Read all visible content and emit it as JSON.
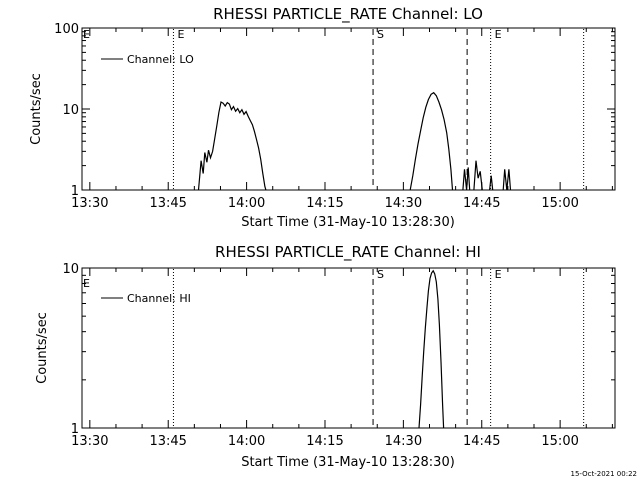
{
  "chart_data": [
    {
      "type": "line",
      "title": "RHESSI PARTICLE_RATE Channel: LO",
      "xlabel": "Start Time (31-May-10 13:28:30)",
      "ylabel": "Counts/sec",
      "x_unit": "minutes after 13:28:30 on 31-May-10",
      "xlim": [
        0,
        102
      ],
      "ylim": [
        1,
        100
      ],
      "y_scale": "log",
      "xticks": [
        {
          "t": 1.5,
          "label": "13:30"
        },
        {
          "t": 16.5,
          "label": "13:45"
        },
        {
          "t": 31.5,
          "label": "14:00"
        },
        {
          "t": 46.5,
          "label": "14:15"
        },
        {
          "t": 61.5,
          "label": "14:30"
        },
        {
          "t": 76.5,
          "label": "14:45"
        },
        {
          "t": 91.5,
          "label": "15:00"
        }
      ],
      "yticks": [
        {
          "v": 1,
          "label": "1"
        },
        {
          "v": 10,
          "label": "10"
        },
        {
          "v": 100,
          "label": "100"
        }
      ],
      "grid": false,
      "legend_position": "top-left",
      "series": [
        {
          "name": "Channel: LO",
          "segments": [
            [
              [
                22.3,
                1
              ],
              [
                22.8,
                2.3
              ],
              [
                23.2,
                1.6
              ],
              [
                23.5,
                2.9
              ],
              [
                23.9,
                2.2
              ],
              [
                24.2,
                3.1
              ],
              [
                24.6,
                2.5
              ],
              [
                25.0,
                3.0
              ],
              [
                25.4,
                4.3
              ],
              [
                25.8,
                6.2
              ],
              [
                26.2,
                9.1
              ],
              [
                26.6,
                12.2
              ],
              [
                27.0,
                11.8
              ],
              [
                27.4,
                10.9
              ],
              [
                27.8,
                12.0
              ],
              [
                28.2,
                11.5
              ],
              [
                28.6,
                9.8
              ],
              [
                29.0,
                10.7
              ],
              [
                29.4,
                9.4
              ],
              [
                29.8,
                10.1
              ],
              [
                30.2,
                9.0
              ],
              [
                30.6,
                9.8
              ],
              [
                31.0,
                8.6
              ],
              [
                31.4,
                9.3
              ],
              [
                31.8,
                8.1
              ],
              [
                32.2,
                7.2
              ],
              [
                32.6,
                6.4
              ],
              [
                33.0,
                5.3
              ],
              [
                33.4,
                4.2
              ],
              [
                33.8,
                3.3
              ],
              [
                34.2,
                2.4
              ],
              [
                34.6,
                1.6
              ],
              [
                35.0,
                1.1
              ],
              [
                35.2,
                1
              ]
            ],
            [
              [
                62.8,
                1
              ],
              [
                63.3,
                1.5
              ],
              [
                63.8,
                2.4
              ],
              [
                64.3,
                3.7
              ],
              [
                64.8,
                5.4
              ],
              [
                65.3,
                7.8
              ],
              [
                65.8,
                10.5
              ],
              [
                66.3,
                13.1
              ],
              [
                66.8,
                15.2
              ],
              [
                67.3,
                15.9
              ],
              [
                67.8,
                14.6
              ],
              [
                68.3,
                12.2
              ],
              [
                68.8,
                9.8
              ],
              [
                69.3,
                7.4
              ],
              [
                69.8,
                5.1
              ],
              [
                70.2,
                3.2
              ],
              [
                70.6,
                1.8
              ],
              [
                70.9,
                1
              ]
            ],
            [
              [
                72.9,
                1
              ],
              [
                73.2,
                1.8
              ],
              [
                73.6,
                1
              ],
              [
                73.9,
                1.9
              ],
              [
                74.2,
                1
              ]
            ],
            [
              [
                75.0,
                1
              ],
              [
                75.4,
                2.3
              ],
              [
                75.8,
                1.4
              ],
              [
                76.2,
                1.7
              ],
              [
                76.6,
                1
              ]
            ],
            [
              [
                78.0,
                1
              ],
              [
                78.3,
                1.5
              ],
              [
                78.6,
                1
              ]
            ],
            [
              [
                80.6,
                1
              ],
              [
                80.9,
                1.8
              ],
              [
                81.3,
                1
              ],
              [
                81.7,
                1.8
              ],
              [
                82.0,
                1
              ]
            ]
          ]
        }
      ],
      "markers": [
        {
          "t": 17.5,
          "style": "dotted",
          "label": "E"
        },
        {
          "t": 55.7,
          "style": "dashed",
          "label": "S"
        },
        {
          "t": 73.7,
          "style": "dashed",
          "label": ""
        },
        {
          "t": 78.2,
          "style": "dotted",
          "label": "E"
        },
        {
          "t": 96.0,
          "style": "dotted",
          "label": ""
        }
      ],
      "left_edge_label": "E"
    },
    {
      "type": "line",
      "title": "RHESSI PARTICLE_RATE Channel: HI",
      "xlabel": "Start Time (31-May-10 13:28:30)",
      "ylabel": "Counts/sec",
      "x_unit": "minutes after 13:28:30 on 31-May-10",
      "xlim": [
        0,
        102
      ],
      "ylim": [
        1,
        10
      ],
      "y_scale": "log",
      "xticks": [
        {
          "t": 1.5,
          "label": "13:30"
        },
        {
          "t": 16.5,
          "label": "13:45"
        },
        {
          "t": 31.5,
          "label": "14:00"
        },
        {
          "t": 46.5,
          "label": "14:15"
        },
        {
          "t": 61.5,
          "label": "14:30"
        },
        {
          "t": 76.5,
          "label": "14:45"
        },
        {
          "t": 91.5,
          "label": "15:00"
        }
      ],
      "yticks": [
        {
          "v": 1,
          "label": "1"
        },
        {
          "v": 10,
          "label": "10"
        }
      ],
      "grid": false,
      "legend_position": "top-left",
      "series": [
        {
          "name": "Channel: HI",
          "segments": [
            [
              [
                64.5,
                1
              ],
              [
                64.8,
                1.4
              ],
              [
                65.1,
                2.1
              ],
              [
                65.4,
                3.0
              ],
              [
                65.7,
                4.2
              ],
              [
                66.0,
                5.6
              ],
              [
                66.3,
                7.2
              ],
              [
                66.6,
                8.6
              ],
              [
                66.9,
                9.3
              ],
              [
                67.2,
                9.6
              ],
              [
                67.5,
                9.2
              ],
              [
                67.8,
                8.2
              ],
              [
                68.1,
                6.4
              ],
              [
                68.4,
                4.4
              ],
              [
                68.7,
                2.6
              ],
              [
                69.0,
                1.4
              ],
              [
                69.2,
                1
              ]
            ]
          ]
        }
      ],
      "markers": [
        {
          "t": 17.5,
          "style": "dotted",
          "label": ""
        },
        {
          "t": 55.7,
          "style": "dashed",
          "label": "S"
        },
        {
          "t": 73.7,
          "style": "dashed",
          "label": ""
        },
        {
          "t": 78.2,
          "style": "dotted",
          "label": "E"
        },
        {
          "t": 96.0,
          "style": "dotted",
          "label": ""
        }
      ],
      "left_edge_label": "E"
    }
  ],
  "footer_timestamp": "15-Oct-2021 00:22"
}
